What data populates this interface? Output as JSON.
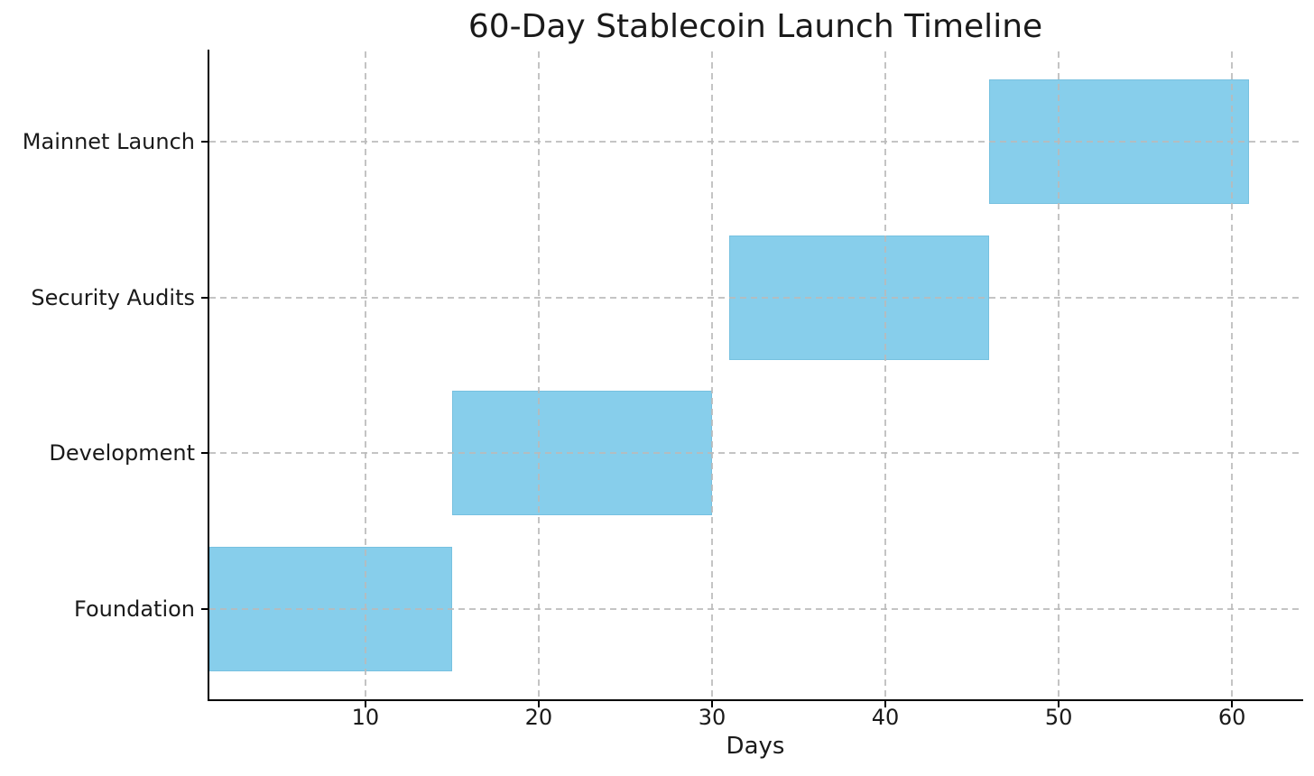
{
  "chart_data": {
    "type": "bar",
    "subtype": "gantt",
    "orientation": "horizontal",
    "title": "60-Day Stablecoin Launch Timeline",
    "xlabel": "Days",
    "categories_bottom_to_top": [
      "Foundation",
      "Development",
      "Security Audits",
      "Mainnet Launch"
    ],
    "tasks": [
      {
        "label": "Foundation",
        "start_day": 1,
        "end_day": 15,
        "duration_days": 14
      },
      {
        "label": "Development",
        "start_day": 15,
        "end_day": 30,
        "duration_days": 15
      },
      {
        "label": "Security Audits",
        "start_day": 31,
        "end_day": 46,
        "duration_days": 15
      },
      {
        "label": "Mainnet Launch",
        "start_day": 46,
        "end_day": 61,
        "duration_days": 15
      }
    ],
    "xticks": [
      10,
      20,
      30,
      40,
      50,
      60
    ],
    "xlim": [
      1,
      64
    ],
    "grid": {
      "visible": true,
      "linestyle": "dashed",
      "color": "#bababa"
    },
    "legend": "none",
    "colors": {
      "bar_fill": "#87CEEB",
      "axis": "#000000",
      "text": "#1a1a1a",
      "background": "#ffffff"
    }
  }
}
